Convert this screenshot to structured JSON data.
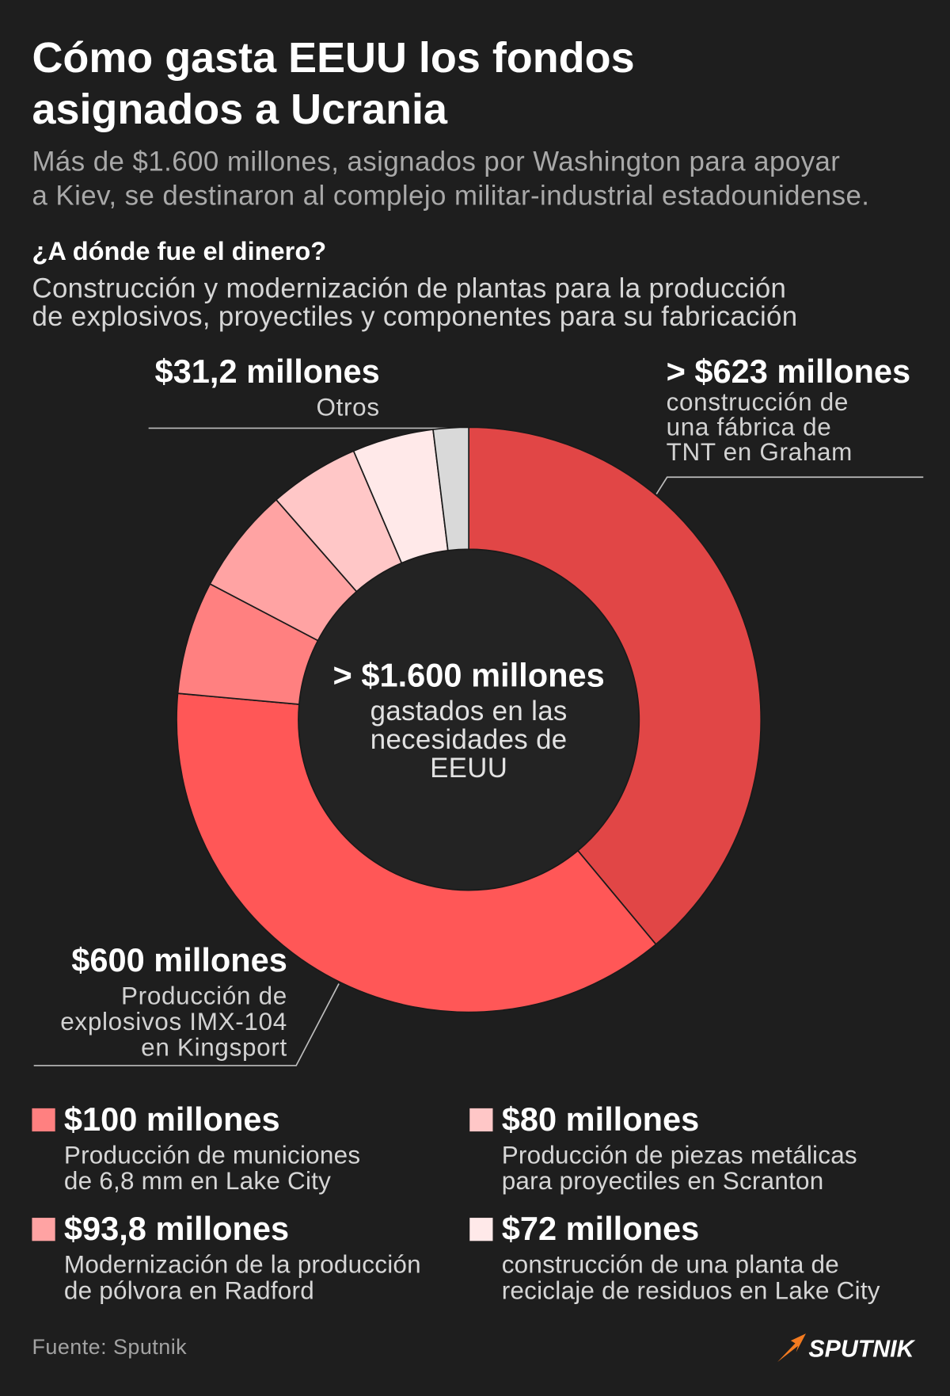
{
  "header": {
    "title": [
      "Cómo gasta EEUU los fondos",
      "asignados a Ucrania"
    ],
    "subtitle": [
      "Más de $1.600 millones, asignados por Washington para apoyar",
      "a Kiev, se destinaron al complejo militar-industrial estadounidense."
    ]
  },
  "question": {
    "heading": "¿A dónde fue el dinero?",
    "text": [
      "Construcción y modernización de plantas para la producción",
      "de explosivos, proyectiles y componentes para su fabricación"
    ]
  },
  "chart_data": {
    "type": "pie",
    "donut": true,
    "center": {
      "value_label": "> $1.600 millones",
      "text": [
        "gastados en las",
        "necesidades de",
        "EEUU"
      ]
    },
    "slices": [
      {
        "value": 623,
        "label": "> $623 millones",
        "description": [
          "construcción de",
          "una fábrica de",
          "TNT en Graham"
        ],
        "color": "#e14646"
      },
      {
        "value": 600,
        "label": "$600 millones",
        "description": [
          "Producción de",
          "explosivos IMX-104",
          "en Kingsport"
        ],
        "color": "#ff5757"
      },
      {
        "value": 100,
        "label": "$100 millones",
        "description": [
          "Producción de municiones",
          "de 6,8 mm en Lake City"
        ],
        "color": "#ff8080"
      },
      {
        "value": 93.8,
        "label": "$93,8 millones",
        "description": [
          "Modernización de la producción",
          "de pólvora en Radford"
        ],
        "color": "#ffa3a3"
      },
      {
        "value": 80,
        "label": "$80 millones",
        "description": [
          "Producción de piezas metálicas",
          "para proyectiles en Scranton"
        ],
        "color": "#ffc7c7"
      },
      {
        "value": 72,
        "label": "$72 millones",
        "description": [
          "construcción de una planta de",
          "reciclaje de residuos en Lake City"
        ],
        "color": "#ffe9e9"
      },
      {
        "value": 31.2,
        "label": "$31,2 millones",
        "description": [
          "Otros"
        ],
        "color": "#d9d9d9"
      }
    ]
  },
  "footer": {
    "source": "Fuente: Sputnik",
    "brand": "SPUTNIK",
    "brand_icon": "sputnik-logo-icon"
  },
  "colors": {
    "background": "#1e1e1e",
    "donut_hole": "#232323",
    "separator": "#1a1a1a",
    "leader_line": "#bdbdbd",
    "brand_orange": "#f47b20"
  }
}
